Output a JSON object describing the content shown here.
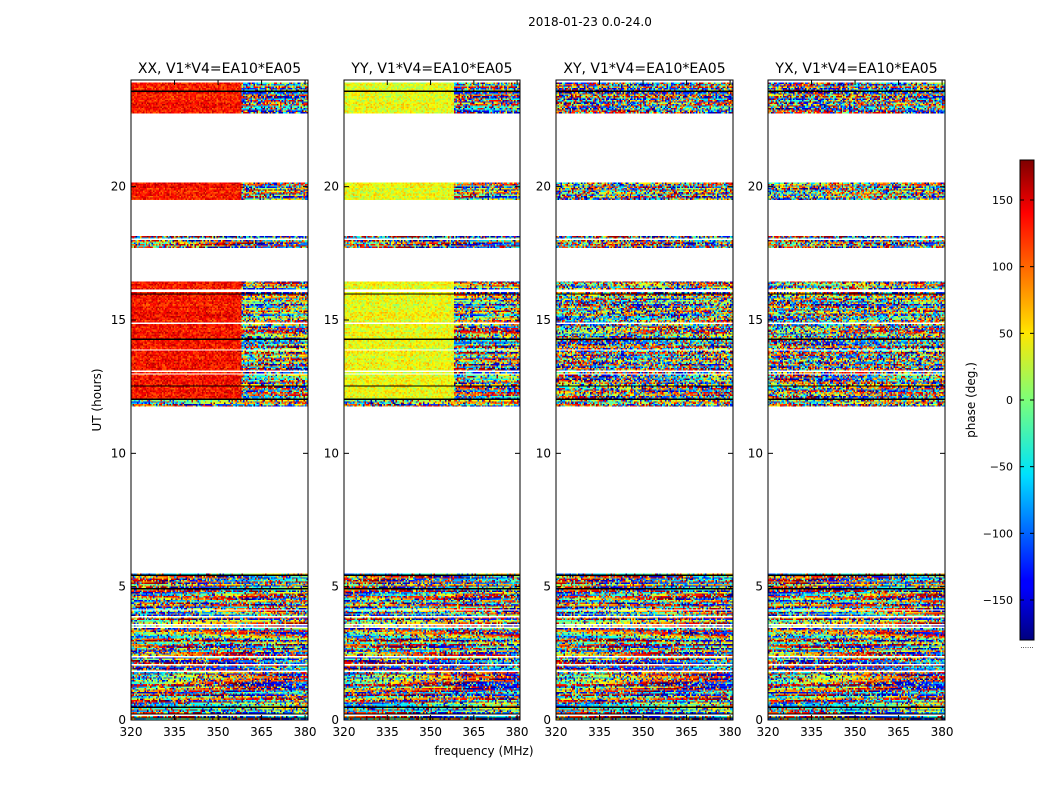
{
  "chart_data": {
    "type": "heatmap",
    "title": "2018-01-23 0.0-24.0",
    "xlabel": "frequency (MHz)",
    "ylabel": "UT (hours)",
    "xlim": [
      320,
      381
    ],
    "ylim": [
      0,
      24
    ],
    "x_ticks": [
      320,
      335,
      350,
      365,
      380
    ],
    "y_ticks": [
      0,
      5,
      10,
      15,
      20
    ],
    "panels": [
      {
        "name": "XX",
        "title": "XX, V1*V4=EA10*EA05",
        "mode": "xx"
      },
      {
        "name": "YY",
        "title": "YY, V1*V4=EA10*EA05",
        "mode": "yy"
      },
      {
        "name": "XY",
        "title": "XY, V1*V4=EA10*EA05",
        "mode": "cross"
      },
      {
        "name": "YX",
        "title": "YX, V1*V4=EA10*EA05",
        "mode": "cross"
      }
    ],
    "data_intervals_ut_hours": [
      [
        0.0,
        5.55
      ],
      [
        11.7,
        13.85
      ],
      [
        13.9,
        16.05
      ],
      [
        16.15,
        16.45
      ],
      [
        17.7,
        18.15
      ],
      [
        19.5,
        20.15
      ],
      [
        22.75,
        23.95
      ]
    ],
    "colorbar": {
      "label": "phase (deg.)",
      "vmin": -180,
      "vmax": 180,
      "ticks": [
        -150,
        -100,
        -50,
        0,
        50,
        100,
        150
      ],
      "colormap": "jet",
      "bottom_text": "......"
    }
  }
}
